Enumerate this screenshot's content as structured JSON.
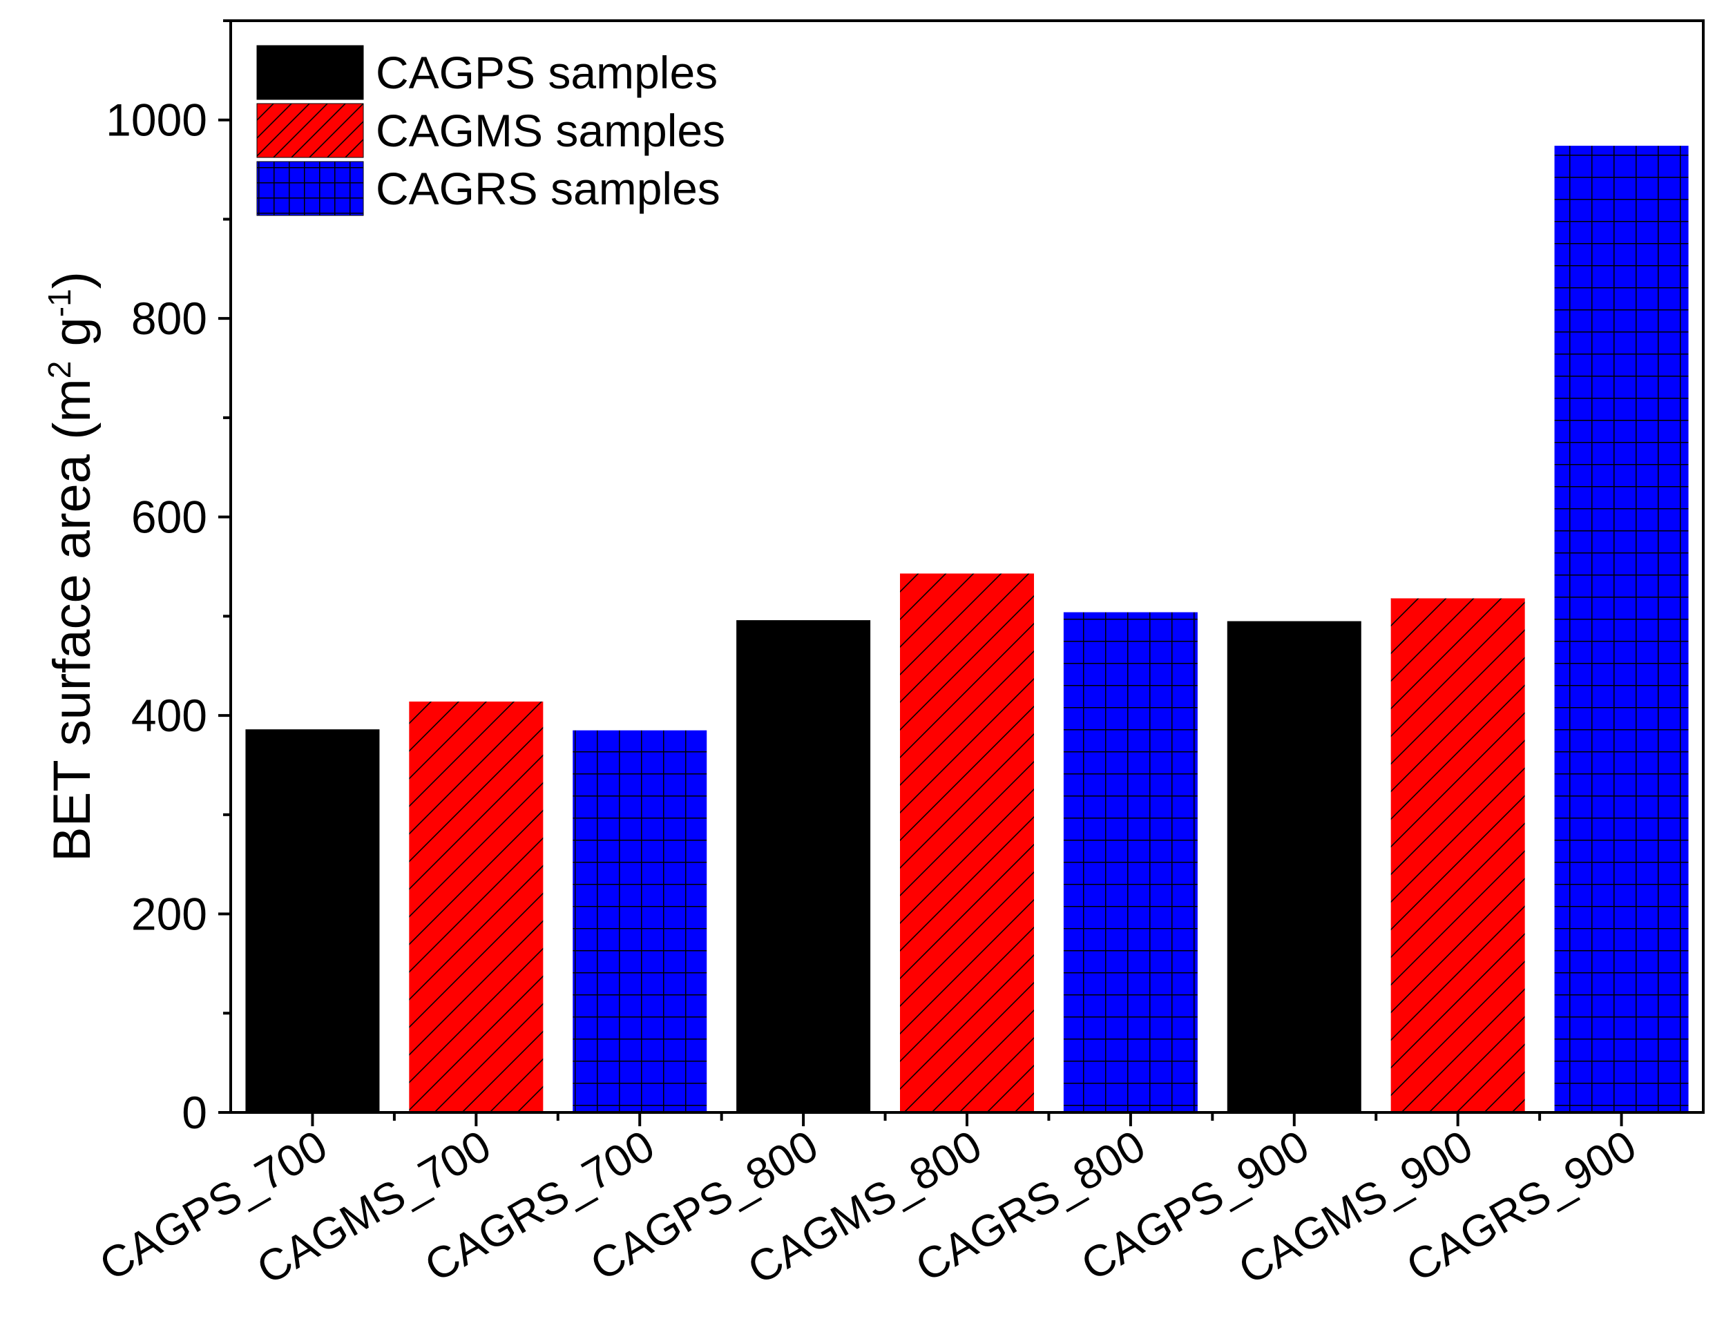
{
  "chart_data": {
    "type": "bar",
    "title": "",
    "xlabel": "",
    "ylabel": {
      "prefix": "BET surface area (m",
      "sup1": "2",
      "middle": " g",
      "sup2": "-1",
      "suffix": ")"
    },
    "ylim": [
      0,
      1100
    ],
    "yticks": [
      0,
      200,
      400,
      600,
      800,
      1000
    ],
    "categories": [
      "CAGPS_700",
      "CAGMS_700",
      "CAGRS_700",
      "CAGPS_800",
      "CAGMS_800",
      "CAGRS_800",
      "CAGPS_900",
      "CAGMS_900",
      "CAGRS_900"
    ],
    "values": [
      386,
      414,
      385,
      496,
      543,
      504,
      495,
      518,
      974
    ],
    "bar_series": [
      0,
      1,
      2,
      0,
      1,
      2,
      0,
      1,
      2
    ],
    "series": [
      {
        "name": "CAGPS samples",
        "color": "#000000",
        "pattern": "solid"
      },
      {
        "name": "CAGMS samples",
        "color": "#ff0000",
        "pattern": "diagonal-hatch"
      },
      {
        "name": "CAGRS samples",
        "color": "#0000ff",
        "pattern": "grid"
      }
    ],
    "legend_position": "top-left"
  }
}
